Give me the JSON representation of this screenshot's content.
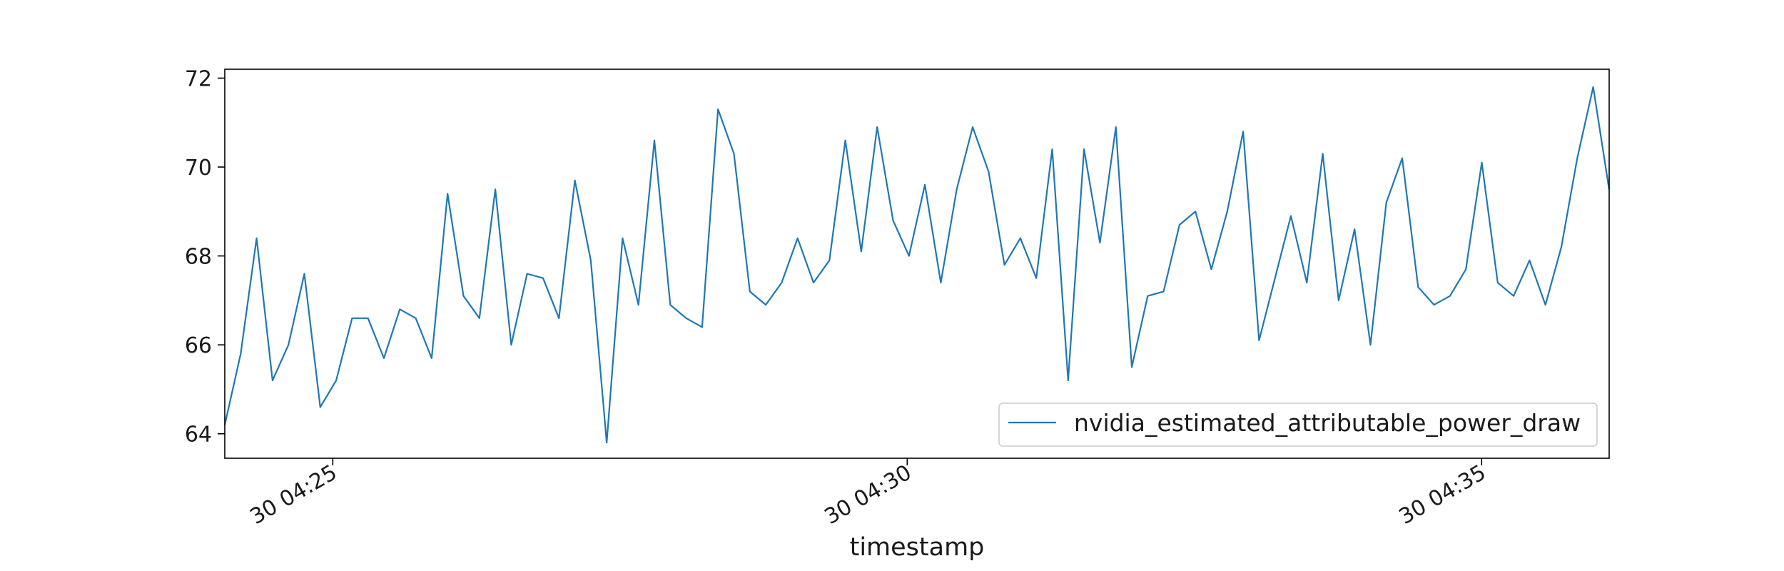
{
  "chart_data": {
    "type": "line",
    "xlabel": "timestamp",
    "ylabel": "",
    "ylim": [
      63.45,
      72.2
    ],
    "y_ticks": [
      64,
      66,
      68,
      70,
      72
    ],
    "x_ticks": [
      {
        "minute": 25,
        "label": "30 04:25"
      },
      {
        "minute": 30,
        "label": "30 04:30"
      },
      {
        "minute": 35,
        "label": "30 04:35"
      }
    ],
    "xlim_minutes": [
      24.06,
      36.11
    ],
    "x_unit": "minutes past 04:00 on day 30, sampled every ~8.3 s",
    "legend": {
      "position": "lower-right"
    },
    "series": [
      {
        "name": "nvidia_estimated_attributable_power_draw",
        "color": "#1f77b4",
        "x_start_minute": 24.06,
        "x_step_minute": 0.1385,
        "values": [
          64.2,
          65.8,
          68.4,
          65.2,
          66.0,
          67.6,
          64.6,
          65.2,
          66.6,
          66.6,
          65.7,
          66.8,
          66.6,
          65.7,
          69.4,
          67.1,
          66.6,
          69.5,
          66.0,
          67.6,
          67.5,
          66.6,
          69.7,
          67.9,
          63.8,
          68.4,
          66.9,
          70.6,
          66.9,
          66.6,
          66.4,
          71.3,
          70.3,
          67.2,
          66.9,
          67.4,
          68.4,
          67.4,
          67.9,
          70.6,
          68.1,
          70.9,
          68.8,
          68.0,
          69.6,
          67.4,
          69.5,
          70.9,
          69.9,
          67.8,
          68.4,
          67.5,
          70.4,
          65.2,
          70.4,
          68.3,
          70.9,
          65.5,
          67.1,
          67.2,
          68.7,
          69.0,
          67.7,
          69.0,
          70.8,
          66.1,
          67.5,
          68.9,
          67.4,
          70.3,
          67.0,
          68.6,
          66.0,
          69.2,
          70.2,
          67.3,
          66.9,
          67.1,
          67.7,
          70.1,
          67.4,
          67.1,
          67.9,
          66.9,
          68.2,
          70.2,
          71.8,
          69.5
        ]
      }
    ]
  }
}
